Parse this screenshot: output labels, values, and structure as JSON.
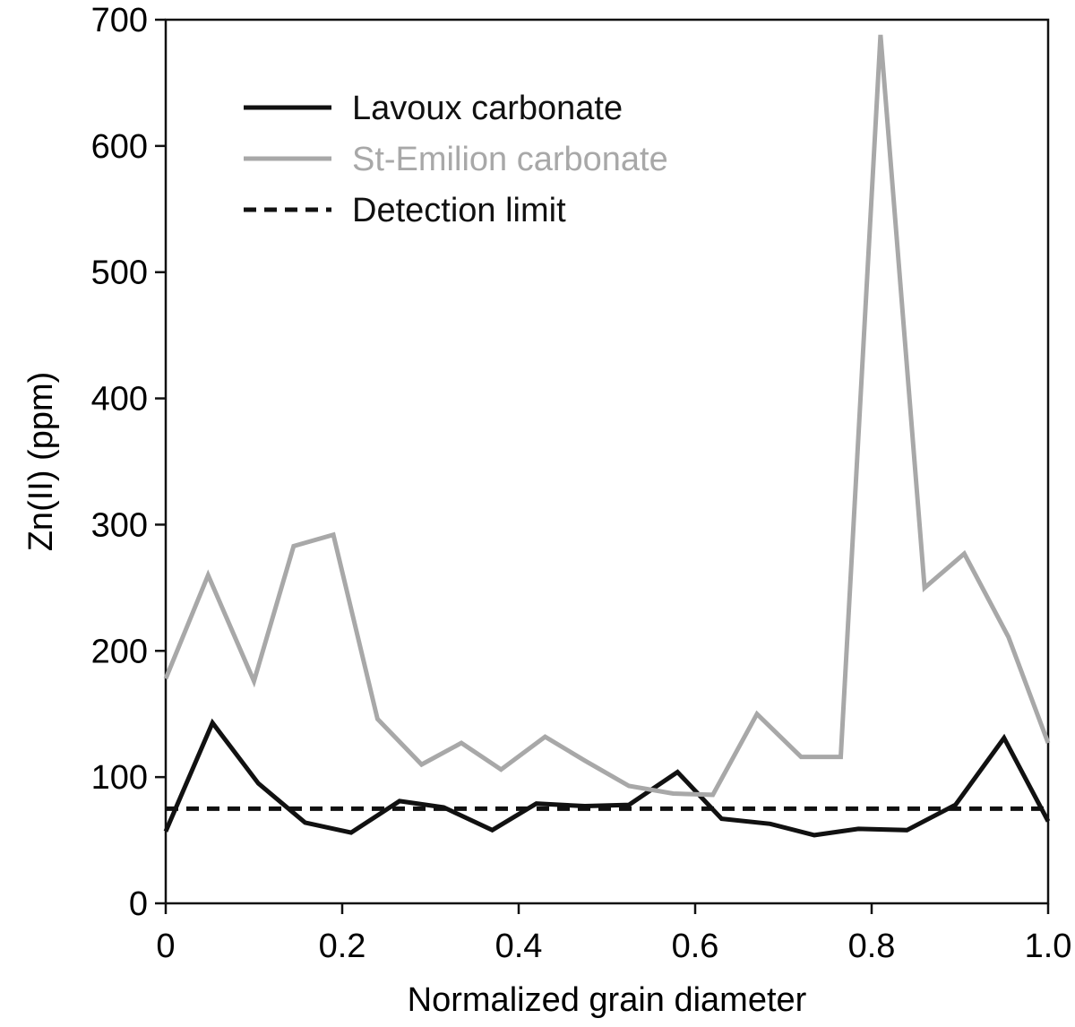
{
  "chart_data": {
    "type": "line",
    "title": "",
    "xlabel": "Normalized grain diameter",
    "ylabel": "Zn(II) (ppm)",
    "xlim": [
      0,
      1.0
    ],
    "ylim": [
      0,
      700
    ],
    "x_ticks": [
      0,
      0.2,
      0.4,
      0.6,
      0.8,
      1.0
    ],
    "x_tick_labels": [
      "0",
      "0.2",
      "0.4",
      "0.6",
      "0.8",
      "1.0"
    ],
    "y_ticks": [
      0,
      100,
      200,
      300,
      400,
      500,
      600,
      700
    ],
    "y_tick_labels": [
      "0",
      "100",
      "200",
      "300",
      "400",
      "500",
      "600",
      "700"
    ],
    "grid": false,
    "legend_position": "top-left",
    "series": [
      {
        "name": "Lavoux carbonate",
        "color": "#111111",
        "dash": "solid",
        "x": [
          0,
          0.053,
          0.105,
          0.158,
          0.21,
          0.265,
          0.315,
          0.37,
          0.42,
          0.475,
          0.525,
          0.58,
          0.63,
          0.685,
          0.735,
          0.785,
          0.84,
          0.895,
          0.95,
          1.0
        ],
        "y": [
          57,
          143,
          95,
          64,
          56,
          81,
          76,
          58,
          79,
          77,
          78,
          104,
          67,
          63,
          54,
          59,
          58,
          78,
          131,
          65
        ]
      },
      {
        "name": "St-Emilion carbonate",
        "color": "#a8a8a8",
        "dash": "solid",
        "x": [
          0,
          0.048,
          0.1,
          0.145,
          0.19,
          0.24,
          0.29,
          0.335,
          0.38,
          0.43,
          0.475,
          0.525,
          0.575,
          0.62,
          0.67,
          0.72,
          0.765,
          0.81,
          0.86,
          0.905,
          0.955,
          1.0
        ],
        "y": [
          178,
          260,
          176,
          283,
          292,
          146,
          110,
          127,
          106,
          132,
          113,
          93,
          87,
          86,
          150,
          116,
          116,
          688,
          250,
          277,
          211,
          127
        ]
      },
      {
        "name": "Detection limit",
        "color": "#111111",
        "dash": "dashed",
        "x": [
          0,
          1.0
        ],
        "y": [
          75,
          75
        ]
      }
    ]
  }
}
